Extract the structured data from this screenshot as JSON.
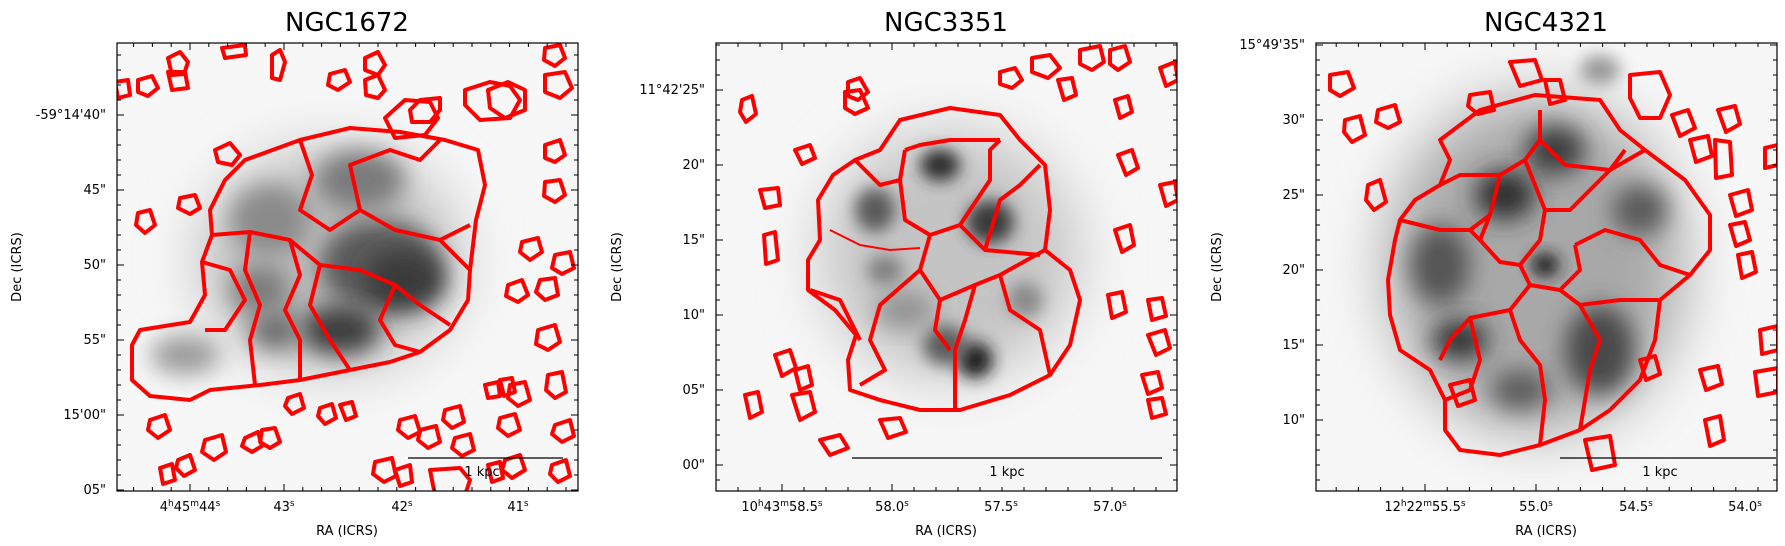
{
  "chart_data": [
    {
      "type": "other",
      "title": "NGC1672",
      "xlabel": "RA (ICRS)",
      "ylabel": "Dec (ICRS)",
      "x_ticks": [
        {
          "main": "4",
          "sup1": "h",
          "main2": "45",
          "sup2": "m",
          "main3": "44",
          "sup3": "s"
        },
        {
          "main": "43",
          "sup1": "s"
        },
        {
          "main": "42",
          "sup1": "s"
        },
        {
          "main": "41",
          "sup1": "s"
        }
      ],
      "y_ticks": [
        "-59°14'40\"",
        "45\"",
        "50\"",
        "55\"",
        "15'00\"",
        "05\""
      ],
      "scalebar": "1 kpc",
      "contour_color": "#ff0000"
    },
    {
      "type": "other",
      "title": "NGC3351",
      "xlabel": "RA (ICRS)",
      "ylabel": "Dec (ICRS)",
      "x_ticks": [
        {
          "main": "10",
          "sup1": "h",
          "main2": "43",
          "sup2": "m",
          "main3": "58.5",
          "sup3": "s"
        },
        {
          "main": "58.0",
          "sup1": "s"
        },
        {
          "main": "57.5",
          "sup1": "s"
        },
        {
          "main": "57.0",
          "sup1": "s"
        }
      ],
      "y_ticks": [
        "11°42'25\"",
        "20\"",
        "15\"",
        "10\"",
        "05\"",
        "00\""
      ],
      "scalebar": "1 kpc",
      "contour_color": "#ff0000"
    },
    {
      "type": "other",
      "title": "NGC4321",
      "xlabel": "RA (ICRS)",
      "ylabel": "Dec (ICRS)",
      "x_ticks": [
        {
          "main": "12",
          "sup1": "h",
          "main2": "22",
          "sup2": "m",
          "main3": "55.5",
          "sup3": "s"
        },
        {
          "main": "55.0",
          "sup1": "s"
        },
        {
          "main": "54.5",
          "sup1": "s"
        },
        {
          "main": "54.0",
          "sup1": "s"
        }
      ],
      "y_ticks": [
        "15°49'35\"",
        "30\"",
        "25\"",
        "20\"",
        "15\"",
        "10\""
      ],
      "scalebar": "1 kpc",
      "contour_color": "#ff0000"
    }
  ]
}
